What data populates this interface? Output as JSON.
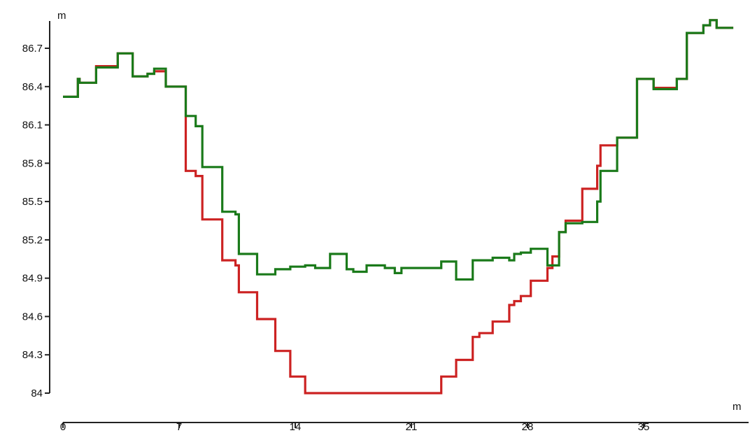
{
  "chart_data": {
    "type": "line",
    "step": true,
    "x_unit": "m",
    "y_unit": "m",
    "xlim": [
      0,
      40.8
    ],
    "ylim": [
      84,
      86.96
    ],
    "x_ticks": [
      0,
      7,
      14,
      21,
      28,
      35
    ],
    "y_ticks": [
      84,
      84.3,
      84.6,
      84.9,
      85.2,
      85.5,
      85.8,
      86.1,
      86.4,
      86.7
    ],
    "grid": false,
    "legend": "none",
    "series": [
      {
        "color": "#cc2222",
        "points": [
          [
            0,
            86.32
          ],
          [
            0.9,
            86.32
          ],
          [
            0.9,
            86.46
          ],
          [
            1.0,
            86.46
          ],
          [
            1.0,
            86.43
          ],
          [
            2.0,
            86.43
          ],
          [
            2.0,
            86.56
          ],
          [
            3.3,
            86.56
          ],
          [
            3.3,
            86.62
          ],
          [
            3.3,
            86.66
          ],
          [
            4.2,
            86.66
          ],
          [
            4.2,
            86.48
          ],
          [
            5.1,
            86.48
          ],
          [
            5.1,
            86.5
          ],
          [
            5.5,
            86.5
          ],
          [
            5.5,
            86.52
          ],
          [
            6.2,
            86.52
          ],
          [
            6.2,
            86.4
          ],
          [
            7.4,
            86.4
          ],
          [
            7.4,
            85.74
          ],
          [
            8.0,
            85.74
          ],
          [
            8.0,
            85.7
          ],
          [
            8.4,
            85.7
          ],
          [
            8.4,
            85.36
          ],
          [
            9.6,
            85.36
          ],
          [
            9.6,
            85.04
          ],
          [
            10.4,
            85.04
          ],
          [
            10.4,
            85.0
          ],
          [
            10.6,
            85.0
          ],
          [
            10.6,
            84.79
          ],
          [
            11.7,
            84.79
          ],
          [
            11.7,
            84.58
          ],
          [
            12.8,
            84.58
          ],
          [
            12.8,
            84.33
          ],
          [
            13.7,
            84.33
          ],
          [
            13.7,
            84.13
          ],
          [
            14.6,
            84.13
          ],
          [
            14.6,
            84.0
          ],
          [
            22.8,
            84.0
          ],
          [
            22.8,
            84.13
          ],
          [
            23.7,
            84.13
          ],
          [
            23.7,
            84.26
          ],
          [
            24.7,
            84.26
          ],
          [
            24.7,
            84.44
          ],
          [
            25.1,
            84.44
          ],
          [
            25.1,
            84.47
          ],
          [
            25.9,
            84.47
          ],
          [
            25.9,
            84.56
          ],
          [
            26.9,
            84.56
          ],
          [
            26.9,
            84.69
          ],
          [
            27.2,
            84.69
          ],
          [
            27.2,
            84.72
          ],
          [
            27.6,
            84.72
          ],
          [
            27.6,
            84.76
          ],
          [
            28.2,
            84.76
          ],
          [
            28.2,
            84.88
          ],
          [
            29.2,
            84.88
          ],
          [
            29.2,
            84.98
          ],
          [
            29.5,
            84.98
          ],
          [
            29.5,
            85.07
          ],
          [
            29.9,
            85.07
          ],
          [
            29.9,
            85.26
          ],
          [
            30.3,
            85.26
          ],
          [
            30.3,
            85.35
          ],
          [
            31.3,
            85.35
          ],
          [
            31.3,
            85.6
          ],
          [
            32.2,
            85.6
          ],
          [
            32.2,
            85.78
          ],
          [
            32.4,
            85.78
          ],
          [
            32.4,
            85.94
          ],
          [
            33.4,
            85.94
          ],
          [
            33.4,
            86.0
          ],
          [
            34.6,
            86.0
          ],
          [
            34.6,
            86.46
          ],
          [
            35.6,
            86.46
          ],
          [
            35.6,
            86.39
          ],
          [
            37.0,
            86.39
          ],
          [
            37.0,
            86.46
          ],
          [
            37.6,
            86.46
          ],
          [
            37.6,
            86.82
          ],
          [
            38.6,
            86.82
          ],
          [
            38.6,
            86.88
          ],
          [
            39.0,
            86.88
          ],
          [
            39.0,
            86.92
          ],
          [
            39.4,
            86.92
          ],
          [
            39.4,
            86.86
          ],
          [
            40.4,
            86.86
          ]
        ]
      },
      {
        "color": "#1a7a1a",
        "points": [
          [
            0,
            86.32
          ],
          [
            0.9,
            86.32
          ],
          [
            0.9,
            86.46
          ],
          [
            1.0,
            86.46
          ],
          [
            1.0,
            86.43
          ],
          [
            2.0,
            86.43
          ],
          [
            2.0,
            86.55
          ],
          [
            3.3,
            86.55
          ],
          [
            3.3,
            86.62
          ],
          [
            3.3,
            86.66
          ],
          [
            4.2,
            86.66
          ],
          [
            4.2,
            86.48
          ],
          [
            5.1,
            86.48
          ],
          [
            5.1,
            86.5
          ],
          [
            5.5,
            86.5
          ],
          [
            5.5,
            86.54
          ],
          [
            6.2,
            86.54
          ],
          [
            6.2,
            86.4
          ],
          [
            7.4,
            86.4
          ],
          [
            7.4,
            86.17
          ],
          [
            8.0,
            86.17
          ],
          [
            8.0,
            86.09
          ],
          [
            8.4,
            86.09
          ],
          [
            8.4,
            85.77
          ],
          [
            9.6,
            85.77
          ],
          [
            9.6,
            85.42
          ],
          [
            10.4,
            85.42
          ],
          [
            10.4,
            85.4
          ],
          [
            10.6,
            85.4
          ],
          [
            10.6,
            85.09
          ],
          [
            11.7,
            85.09
          ],
          [
            11.7,
            84.93
          ],
          [
            12.8,
            84.93
          ],
          [
            12.8,
            84.97
          ],
          [
            13.7,
            84.97
          ],
          [
            13.7,
            84.99
          ],
          [
            14.6,
            84.99
          ],
          [
            14.6,
            85.0
          ],
          [
            15.2,
            85.0
          ],
          [
            15.2,
            84.98
          ],
          [
            16.1,
            84.98
          ],
          [
            16.1,
            85.09
          ],
          [
            17.1,
            85.09
          ],
          [
            17.1,
            84.97
          ],
          [
            17.5,
            84.97
          ],
          [
            17.5,
            84.95
          ],
          [
            18.3,
            84.95
          ],
          [
            18.3,
            85.0
          ],
          [
            19.4,
            85.0
          ],
          [
            19.4,
            84.98
          ],
          [
            20.0,
            84.98
          ],
          [
            20.0,
            84.94
          ],
          [
            20.4,
            84.94
          ],
          [
            20.4,
            84.98
          ],
          [
            22.8,
            84.98
          ],
          [
            22.8,
            85.03
          ],
          [
            23.7,
            85.03
          ],
          [
            23.7,
            84.89
          ],
          [
            24.7,
            84.89
          ],
          [
            24.7,
            85.04
          ],
          [
            25.1,
            85.04
          ],
          [
            25.1,
            85.04
          ],
          [
            25.9,
            85.04
          ],
          [
            25.9,
            85.06
          ],
          [
            26.9,
            85.06
          ],
          [
            26.9,
            85.04
          ],
          [
            27.2,
            85.04
          ],
          [
            27.2,
            85.09
          ],
          [
            27.6,
            85.09
          ],
          [
            27.6,
            85.1
          ],
          [
            28.2,
            85.1
          ],
          [
            28.2,
            85.13
          ],
          [
            29.2,
            85.13
          ],
          [
            29.2,
            85.0
          ],
          [
            29.5,
            85.0
          ],
          [
            29.5,
            85.0
          ],
          [
            29.9,
            85.0
          ],
          [
            29.9,
            85.26
          ],
          [
            30.3,
            85.26
          ],
          [
            30.3,
            85.33
          ],
          [
            31.3,
            85.33
          ],
          [
            31.3,
            85.34
          ],
          [
            32.2,
            85.34
          ],
          [
            32.2,
            85.5
          ],
          [
            32.4,
            85.5
          ],
          [
            32.4,
            85.74
          ],
          [
            33.4,
            85.74
          ],
          [
            33.4,
            86.0
          ],
          [
            34.6,
            86.0
          ],
          [
            34.6,
            86.46
          ],
          [
            35.6,
            86.46
          ],
          [
            35.6,
            86.38
          ],
          [
            37.0,
            86.38
          ],
          [
            37.0,
            86.46
          ],
          [
            37.6,
            86.46
          ],
          [
            37.6,
            86.82
          ],
          [
            38.6,
            86.82
          ],
          [
            38.6,
            86.88
          ],
          [
            39.0,
            86.88
          ],
          [
            39.0,
            86.92
          ],
          [
            39.4,
            86.92
          ],
          [
            39.4,
            86.86
          ],
          [
            40.4,
            86.86
          ]
        ]
      }
    ]
  },
  "labels": {
    "y_unit": "m",
    "x_unit": "m"
  }
}
